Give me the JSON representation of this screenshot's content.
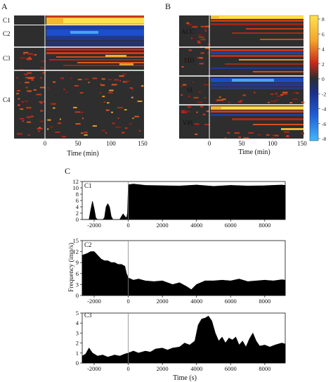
{
  "panels": {
    "a": "A",
    "b": "B",
    "c": "C"
  },
  "heatmap_a": {
    "groups": [
      "C1",
      "C2",
      "C3",
      "C4"
    ],
    "xlabel": "Time (min)",
    "xticks": [
      "0",
      "50",
      "100",
      "150"
    ]
  },
  "heatmap_b": {
    "groups": [
      "ACC",
      "MD",
      "SI",
      "VPL"
    ],
    "xlabel": "Time (min)",
    "xticks": [
      "0",
      "50",
      "100",
      "150"
    ]
  },
  "colorbar": {
    "ticks": [
      "8",
      "6",
      "4",
      "2",
      "0",
      "-2",
      "-4",
      "-6",
      "-8"
    ]
  },
  "frequency_ylabel": "Frequency (imp/s)",
  "time_xlabel": "Time (s)",
  "chart_data": [
    {
      "type": "heatmap",
      "panel": "A",
      "x": [
        -40,
        0,
        50,
        100,
        150
      ],
      "xlim": [
        -40,
        150
      ],
      "xlabel": "Time (min)",
      "row_groups": [
        "C1",
        "C2",
        "C3",
        "C4"
      ],
      "colorscale": {
        "range": [
          -8,
          8
        ],
        "low": "#3fa9ff",
        "mid": "#2e2e2e",
        "high": "#ffe14d"
      }
    },
    {
      "type": "heatmap",
      "panel": "B",
      "x": [
        -40,
        0,
        50,
        100,
        150
      ],
      "xlim": [
        -40,
        150
      ],
      "xlabel": "Time (min)",
      "row_groups": [
        "ACC",
        "MD",
        "SI",
        "VPL"
      ],
      "colorscale": {
        "range": [
          -8,
          8
        ],
        "low": "#3fa9ff",
        "mid": "#2e2e2e",
        "high": "#ffe14d"
      }
    },
    {
      "type": "area",
      "panel": "C1",
      "xlim": [
        -2700,
        9200
      ],
      "ylim": [
        0,
        12
      ],
      "xticks": [
        -2000,
        0,
        2000,
        4000,
        6000,
        8000
      ],
      "yticks": [
        0,
        2,
        4,
        6,
        8,
        10,
        12
      ],
      "x": [
        -2700,
        -2400,
        -2300,
        -2200,
        -2100,
        -2000,
        -1900,
        -1800,
        -1700,
        -1500,
        -1400,
        -1300,
        -1200,
        -1100,
        -1000,
        -900,
        -800,
        -600,
        -500,
        -400,
        -300,
        -200,
        -100,
        -50,
        0,
        300,
        1000,
        2000,
        3000,
        4000,
        5000,
        6000,
        7000,
        8000,
        9000,
        9200
      ],
      "y": [
        0,
        0,
        0,
        3,
        5.8,
        3.5,
        0.5,
        0,
        0,
        0,
        0.5,
        4,
        5,
        4,
        1,
        0,
        0,
        0,
        0,
        1,
        1.8,
        1,
        0.5,
        2,
        11,
        11.2,
        10.8,
        10.7,
        10.6,
        10.9,
        10.5,
        10.8,
        10.6,
        10.7,
        10.9,
        10.8
      ]
    },
    {
      "type": "area",
      "panel": "C2",
      "xlim": [
        -2700,
        9200
      ],
      "ylim": [
        0,
        15
      ],
      "xticks": [
        -2000,
        0,
        2000,
        4000,
        6000,
        8000
      ],
      "yticks": [
        0,
        3,
        6,
        9,
        12,
        15
      ],
      "x": [
        -2700,
        -2400,
        -2200,
        -2000,
        -1800,
        -1600,
        -1400,
        -1200,
        -1000,
        -800,
        -600,
        -400,
        -200,
        -100,
        0,
        300,
        600,
        1000,
        1500,
        2000,
        2300,
        2600,
        3000,
        3400,
        3700,
        4000,
        4500,
        5000,
        5500,
        6000,
        6500,
        7000,
        7500,
        8000,
        8500,
        9000,
        9200
      ],
      "y": [
        11,
        11.5,
        12,
        12,
        11,
        10,
        9.5,
        9.5,
        9,
        9,
        8.5,
        8.5,
        8,
        6,
        4.8,
        4.2,
        4.5,
        4,
        3.8,
        4,
        3.5,
        3,
        3.5,
        2.5,
        1.6,
        3,
        4,
        4,
        4.2,
        4,
        4.5,
        3.8,
        4,
        4.2,
        4,
        4.3,
        4.2
      ]
    },
    {
      "type": "area",
      "panel": "C3",
      "xlim": [
        -2700,
        9200
      ],
      "ylim": [
        0,
        5
      ],
      "xticks": [
        -2000,
        0,
        2000,
        4000,
        6000,
        8000
      ],
      "yticks": [
        0,
        1,
        2,
        3,
        4,
        5
      ],
      "x": [
        -2700,
        -2500,
        -2300,
        -2100,
        -1800,
        -1500,
        -1200,
        -1000,
        -800,
        -500,
        -200,
        0,
        300,
        600,
        1000,
        1300,
        1600,
        2000,
        2300,
        2600,
        3000,
        3300,
        3600,
        3900,
        4100,
        4300,
        4500,
        4700,
        4900,
        5100,
        5300,
        5500,
        5700,
        5900,
        6100,
        6300,
        6500,
        6700,
        6900,
        7100,
        7300,
        7500,
        7700,
        8000,
        8300,
        8600,
        9000,
        9200
      ],
      "y": [
        0.7,
        0.9,
        1.5,
        1.0,
        0.7,
        0.8,
        0.6,
        0.7,
        0.8,
        0.7,
        0.9,
        1.0,
        1.2,
        1.0,
        1.2,
        1.1,
        1.4,
        1.5,
        1.3,
        1.5,
        1.6,
        2.0,
        1.8,
        2.2,
        3.8,
        4.4,
        4.5,
        4.7,
        4.2,
        3.0,
        2.2,
        2.6,
        2.0,
        2.5,
        2.3,
        2.6,
        1.8,
        2.2,
        1.6,
        2.4,
        3.0,
        2.2,
        1.7,
        1.8,
        1.6,
        1.8,
        2.0,
        1.9
      ]
    }
  ]
}
